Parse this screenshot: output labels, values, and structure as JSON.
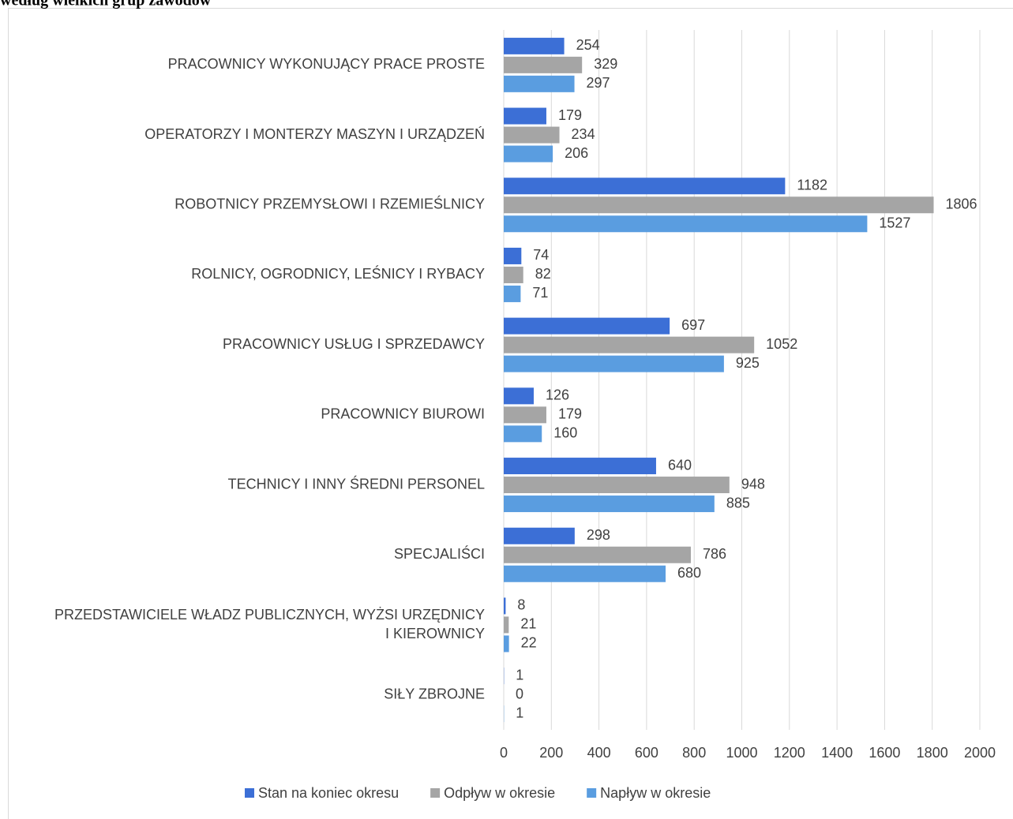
{
  "chart_data": {
    "type": "bar",
    "orientation": "horizontal",
    "title": "według wielkich grup zawodów",
    "categories": [
      "PRACOWNICY WYKONUJĄCY PRACE PROSTE",
      "OPERATORZY I MONTERZY MASZYN I URZĄDZEŃ",
      "ROBOTNICY PRZEMYSŁOWI I RZEMIEŚLNICY",
      "ROLNICY, OGRODNICY, LEŚNICY I RYBACY",
      "PRACOWNICY USŁUG I SPRZEDAWCY",
      "PRACOWNICY BIUROWI",
      "TECHNICY I INNY ŚREDNI PERSONEL",
      "SPECJALIŚCI",
      "PRZEDSTAWICIELE WŁADZ PUBLICZNYCH, WYŻSI URZĘDNICY\nI KIEROWNICY",
      "SIŁY ZBROJNE"
    ],
    "series": [
      {
        "name": "Stan na koniec okresu",
        "color": "#3c6fd6",
        "values": [
          254,
          179,
          1182,
          74,
          697,
          126,
          640,
          298,
          8,
          1
        ]
      },
      {
        "name": "Odpływ w okresie",
        "color": "#a5a5a5",
        "values": [
          329,
          234,
          1806,
          82,
          1052,
          179,
          948,
          786,
          21,
          0
        ]
      },
      {
        "name": "Napływ w okresie",
        "color": "#5a9de0",
        "values": [
          297,
          206,
          1527,
          71,
          925,
          160,
          885,
          680,
          22,
          1
        ]
      }
    ],
    "xlim": [
      0,
      2000
    ],
    "xticks": [
      0,
      200,
      400,
      600,
      800,
      1000,
      1200,
      1400,
      1600,
      1800,
      2000
    ],
    "grid": true,
    "legend": "bottom"
  }
}
